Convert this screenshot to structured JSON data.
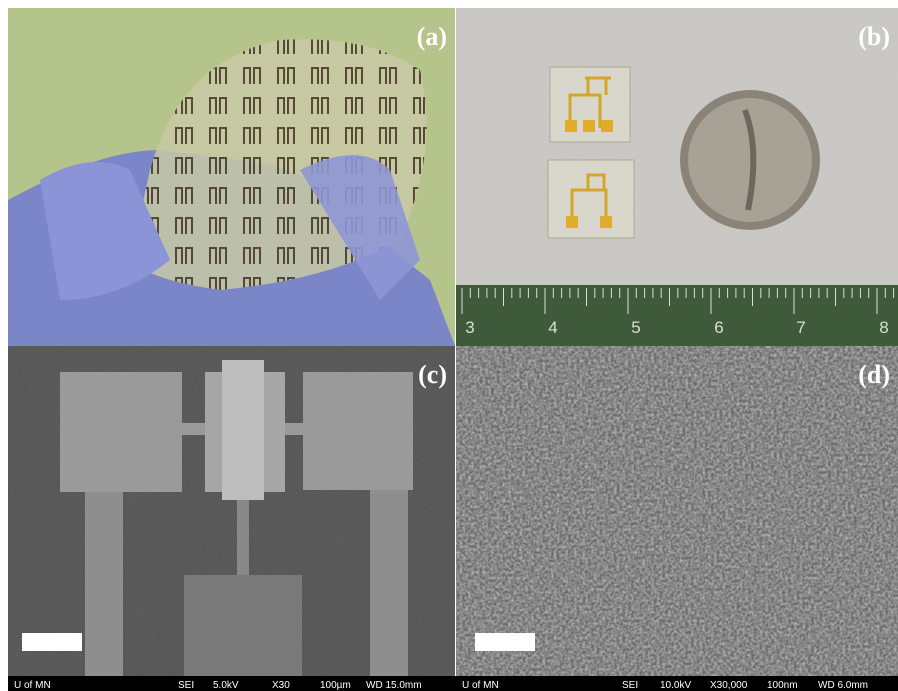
{
  "panels": [
    {
      "label": "(a)"
    },
    {
      "label": "(b)",
      "ruler": [
        "3",
        "4",
        "5",
        "6",
        "7",
        "8"
      ]
    },
    {
      "label": "(c)",
      "info_bar": [
        "U of MN",
        "SEI",
        "5.0kV",
        "X30",
        "100µm",
        "WD 15.0mm"
      ]
    },
    {
      "label": "(d)",
      "info_bar": [
        "U of MN",
        "SEI",
        "10.0kV",
        "X30,000",
        "100nm",
        "WD 6.0mm"
      ]
    }
  ]
}
